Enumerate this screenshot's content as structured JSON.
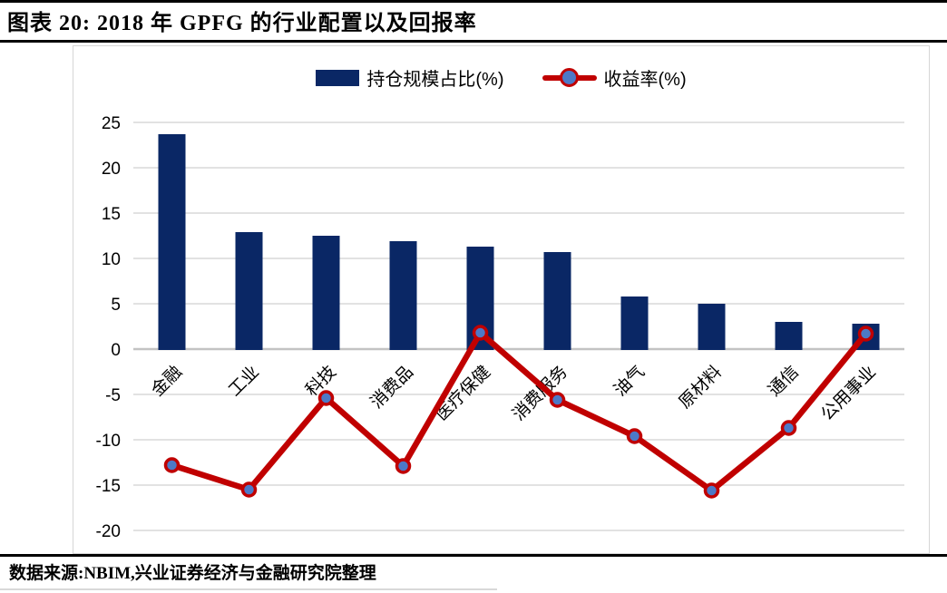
{
  "header": {
    "title": "图表 20: 2018 年 GPFG 的行业配置以及回报率"
  },
  "footer": {
    "source": "数据来源:NBIM,兴业证券经济与金融研究院整理"
  },
  "chart_data": {
    "type": "combo",
    "categories": [
      "金融",
      "工业",
      "科技",
      "消费品",
      "医疗保健",
      "消费服务",
      "油气",
      "原材料",
      "通信",
      "公用事业"
    ],
    "series": [
      {
        "name": "持仓规模占比(%)",
        "type": "bar",
        "color": "#0A2765",
        "values": [
          23.7,
          12.9,
          12.5,
          11.9,
          11.3,
          10.7,
          5.8,
          5.0,
          3.0,
          2.8
        ]
      },
      {
        "name": "收益率(%)",
        "type": "line",
        "color": "#C00000",
        "marker_fill": "#4D79C7",
        "values": [
          -12.8,
          -15.5,
          -5.4,
          -12.9,
          1.8,
          -5.6,
          -9.6,
          -15.6,
          -8.7,
          1.7
        ]
      }
    ],
    "title": "2018 年 GPFG 的行业配置以及回报率",
    "xlabel": "",
    "ylabel": "",
    "ylim": [
      -20,
      25
    ],
    "yticks": [
      25,
      20,
      15,
      10,
      5,
      0,
      -5,
      -10,
      -15,
      -20
    ],
    "grid": true,
    "legend_position": "top-center",
    "gridline_color": "#D9D9D9",
    "axis_color": "#C3C3C3",
    "tick_label_color": "#000000"
  }
}
